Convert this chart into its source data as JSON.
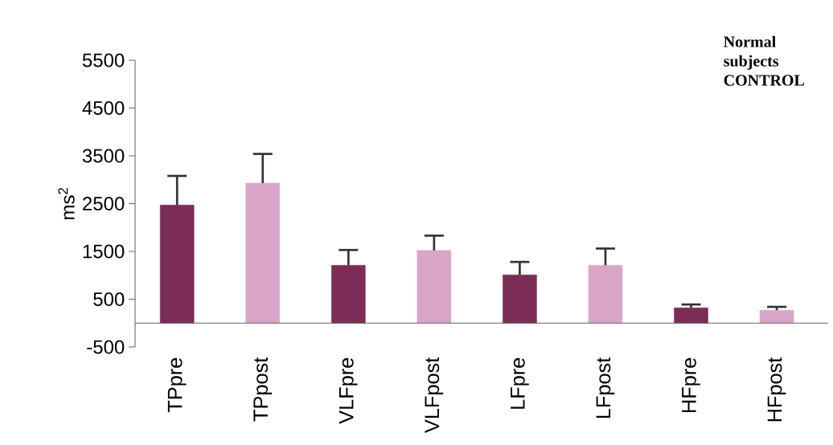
{
  "chart_data": {
    "type": "bar",
    "categories": [
      "TPpre",
      "TPpost",
      "VLFpre",
      "VLFpost",
      "LFpre",
      "LFpost",
      "HFpre",
      "HFpost"
    ],
    "values": [
      2470,
      2930,
      1210,
      1520,
      1010,
      1210,
      320,
      270
    ],
    "errors": [
      610,
      610,
      320,
      310,
      270,
      350,
      70,
      70
    ],
    "colors": [
      "#7b2d55",
      "#d9a6c9",
      "#7b2d55",
      "#d9a6c9",
      "#7b2d55",
      "#d9a6c9",
      "#7b2d55",
      "#d9a6c9"
    ],
    "ylabel": "ms$^{2}$",
    "ylim": [
      -500,
      5500
    ],
    "yticks": [
      -500,
      500,
      1500,
      2500,
      3500,
      4500,
      5500
    ],
    "annotations": [
      "**Normal subjects CONTROL**"
    ],
    "grid": false
  }
}
